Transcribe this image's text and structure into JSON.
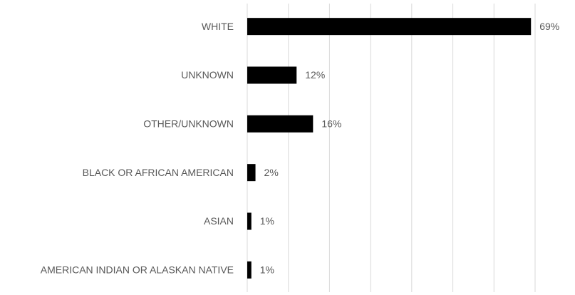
{
  "chart_data": {
    "type": "bar",
    "orientation": "horizontal",
    "categories": [
      "WHITE",
      "UNKNOWN",
      "OTHER/UNKNOWN",
      "BLACK OR AFRICAN AMERICAN",
      "ASIAN",
      "AMERICAN INDIAN OR ALASKAN NATIVE"
    ],
    "values": [
      69,
      12,
      16,
      2,
      1,
      1
    ],
    "value_labels": [
      "69%",
      "12%",
      "16%",
      "2%",
      "1%",
      "1%"
    ],
    "color": "#000000",
    "xlim": [
      0,
      70
    ],
    "xticks": [
      0,
      10,
      20,
      30,
      40,
      50,
      60,
      70
    ],
    "grid": true
  }
}
